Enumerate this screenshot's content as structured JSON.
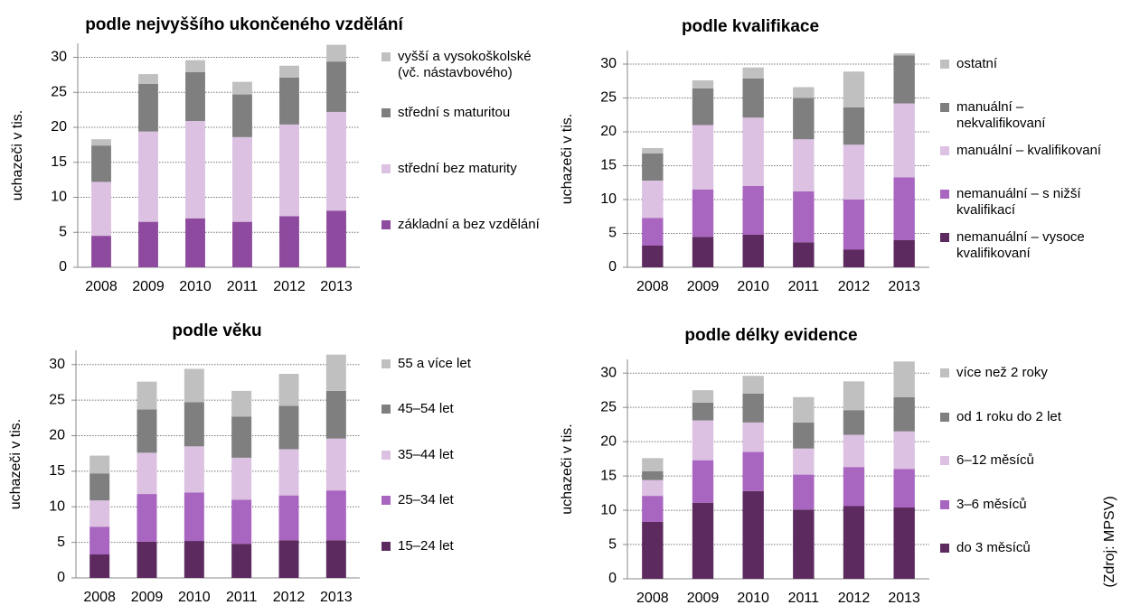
{
  "chart_data": [
    {
      "type": "stacked_bar",
      "title": "podle nejvyššího ukončeného vzdělání",
      "y_label": "uchazeči v tis.",
      "categories": [
        "2008",
        "2009",
        "2010",
        "2011",
        "2012",
        "2013"
      ],
      "ylim": [
        0,
        32
      ],
      "yticks": [
        0,
        5,
        10,
        15,
        20,
        25,
        30
      ],
      "grid": true,
      "series": [
        {
          "name": "základní a bez vzdělání",
          "color": "#8e4a9e",
          "values": [
            4.5,
            6.5,
            7.0,
            6.5,
            7.3,
            8.1
          ]
        },
        {
          "name": "střední bez maturity",
          "color": "#dcc1e2",
          "values": [
            7.7,
            12.9,
            13.9,
            12.1,
            13.1,
            14.1
          ]
        },
        {
          "name": "střední s maturitou",
          "color": "#7f7f7f",
          "values": [
            5.2,
            6.8,
            7.0,
            6.1,
            6.7,
            7.2
          ]
        },
        {
          "name": "vyšší a vysokoškolské (vč. nástavbového)",
          "color": "#c0c0c0",
          "values": [
            0.9,
            1.4,
            1.7,
            1.8,
            1.7,
            2.4
          ]
        }
      ]
    },
    {
      "type": "stacked_bar",
      "title": "podle kvalifikace",
      "y_label": "uchazeči v tis.",
      "categories": [
        "2008",
        "2009",
        "2010",
        "2011",
        "2012",
        "2013"
      ],
      "ylim": [
        0,
        32
      ],
      "yticks": [
        0,
        5,
        10,
        15,
        20,
        25,
        30
      ],
      "grid": true,
      "series": [
        {
          "name": "nemanuální – vysoce kvalifikovaní",
          "color": "#5c2a5f",
          "values": [
            3.2,
            4.5,
            4.8,
            3.7,
            2.6,
            4.0
          ]
        },
        {
          "name": "nemanuální – s nižší kvalifikací",
          "color": "#a966c0",
          "values": [
            4.1,
            7.0,
            7.2,
            7.5,
            7.4,
            9.3
          ]
        },
        {
          "name": "manuální – kvalifikovaní",
          "color": "#dcc1e2",
          "values": [
            5.5,
            9.5,
            10.1,
            7.7,
            8.1,
            10.9
          ]
        },
        {
          "name": "manuální – nekvalifikovaní",
          "color": "#7f7f7f",
          "values": [
            4.0,
            5.4,
            5.8,
            6.1,
            5.5,
            7.1
          ]
        },
        {
          "name": "ostatní",
          "color": "#c0c0c0",
          "values": [
            0.8,
            1.2,
            1.6,
            1.6,
            5.3,
            0.3
          ]
        }
      ]
    },
    {
      "type": "stacked_bar",
      "title": "podle věku",
      "y_label": "uchazeči v tis.",
      "categories": [
        "2008",
        "2009",
        "2010",
        "2011",
        "2012",
        "2013"
      ],
      "ylim": [
        0,
        32
      ],
      "yticks": [
        0,
        5,
        10,
        15,
        20,
        25,
        30
      ],
      "grid": true,
      "series": [
        {
          "name": "15–24 let",
          "color": "#5c2a5f",
          "values": [
            3.3,
            5.1,
            5.2,
            4.8,
            5.3,
            5.3
          ]
        },
        {
          "name": "25–34 let",
          "color": "#a966c0",
          "values": [
            3.9,
            6.7,
            6.8,
            6.2,
            6.3,
            7.0
          ]
        },
        {
          "name": "35–44 let",
          "color": "#dcc1e2",
          "values": [
            3.7,
            5.8,
            6.5,
            5.9,
            6.5,
            7.3
          ]
        },
        {
          "name": "45–54 let",
          "color": "#7f7f7f",
          "values": [
            3.8,
            6.1,
            6.2,
            5.8,
            6.1,
            6.7
          ]
        },
        {
          "name": "55 a více let",
          "color": "#c0c0c0",
          "values": [
            2.5,
            3.9,
            4.7,
            3.6,
            4.5,
            5.1
          ]
        }
      ]
    },
    {
      "type": "stacked_bar",
      "title": "podle délky evidence",
      "y_label": "uchazeči v tis.",
      "categories": [
        "2008",
        "2009",
        "2010",
        "2011",
        "2012",
        "2013"
      ],
      "ylim": [
        0,
        32
      ],
      "yticks": [
        0,
        5,
        10,
        15,
        20,
        25,
        30
      ],
      "grid": true,
      "series": [
        {
          "name": "do 3 měsíců",
          "color": "#5c2a5f",
          "values": [
            8.3,
            11.1,
            12.8,
            10.1,
            10.6,
            10.4
          ]
        },
        {
          "name": "3–6 měsíců",
          "color": "#a966c0",
          "values": [
            3.8,
            6.2,
            5.7,
            5.1,
            5.7,
            5.6
          ]
        },
        {
          "name": "6–12 měsíců",
          "color": "#dcc1e2",
          "values": [
            2.3,
            5.8,
            4.3,
            3.8,
            4.7,
            5.5
          ]
        },
        {
          "name": "od 1 roku do 2 let",
          "color": "#7f7f7f",
          "values": [
            1.3,
            2.6,
            4.2,
            3.8,
            3.6,
            5.0
          ]
        },
        {
          "name": "více než 2 roky",
          "color": "#c0c0c0",
          "values": [
            1.9,
            1.8,
            2.6,
            3.7,
            4.2,
            5.2
          ]
        }
      ]
    }
  ],
  "source": "(Zdroj: MPSV)"
}
